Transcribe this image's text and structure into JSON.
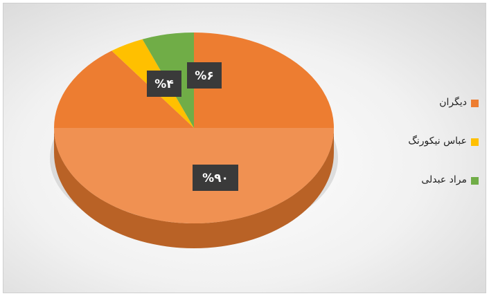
{
  "colors": {
    "series": [
      "#ED7D31",
      "#FFC000",
      "#70AD47"
    ],
    "label_box": "#3a3a3a",
    "label_text": "#ffffff"
  },
  "chart_data": {
    "type": "pie",
    "title": "",
    "slices": [
      {
        "name": "دیگران",
        "value": 90,
        "label": "%۹۰"
      },
      {
        "name": "عباس نیکورنگ",
        "value": 4,
        "label": "%۴"
      },
      {
        "name": "مراد عبدلی",
        "value": 6,
        "label": "%۶"
      }
    ],
    "legend_position": "right",
    "style": "3d"
  }
}
